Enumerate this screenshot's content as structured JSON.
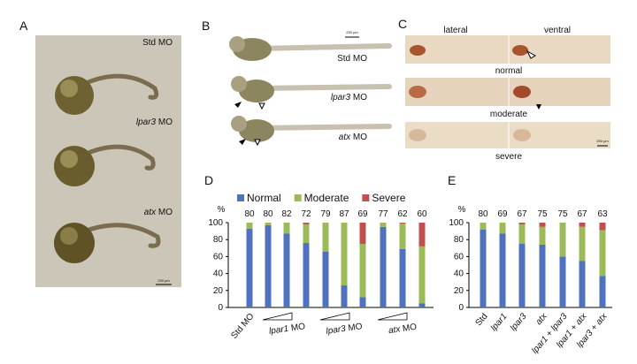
{
  "panels": {
    "A": {
      "letter": "A",
      "labels": [
        "Std MO",
        "lpar3 MO",
        "atx MO"
      ],
      "scale": "250 μm"
    },
    "B": {
      "letter": "B",
      "labels": [
        "Std MO",
        "lpar3 MO",
        "atx MO"
      ],
      "scale": "250 μm"
    },
    "C": {
      "letter": "C",
      "columns": [
        "lateral",
        "ventral"
      ],
      "rows": [
        "normal",
        "moderate",
        "severe"
      ],
      "scale": "250 μm"
    },
    "D": {
      "letter": "D"
    },
    "E": {
      "letter": "E"
    }
  },
  "chart_data": [
    {
      "type": "bar",
      "stacked": true,
      "y_label": "%",
      "legend": "top",
      "categories": [
        "Std MO",
        null,
        null,
        null,
        null,
        null,
        null,
        null,
        null,
        null
      ],
      "group_labels": [
        "lpar1 MO",
        "lpar3 MO",
        "atx MO"
      ],
      "counts": [
        80,
        80,
        82,
        72,
        79,
        87,
        69,
        77,
        62,
        60
      ],
      "series": [
        {
          "name": "Normal",
          "color": "#4f71be",
          "values": [
            93,
            97,
            87,
            76,
            66,
            26,
            12,
            95,
            69,
            5
          ]
        },
        {
          "name": "Moderate",
          "color": "#9bbb59",
          "values": [
            7,
            3,
            13,
            22,
            34,
            74,
            63,
            5,
            30,
            67
          ]
        },
        {
          "name": "Severe",
          "color": "#c0504d",
          "values": [
            0,
            0,
            0,
            2,
            0,
            0,
            25,
            0,
            1,
            28
          ]
        }
      ],
      "ylim": [
        0,
        100
      ],
      "yticks": [
        0,
        20,
        40,
        60,
        80,
        100
      ]
    },
    {
      "type": "bar",
      "stacked": true,
      "y_label": "%",
      "legend": "none",
      "categories": [
        "Std",
        "lpar1",
        "lpar3",
        "atx",
        "lpar1 + lpar3",
        "lpar1 + atx",
        "lpar3 + atx"
      ],
      "counts": [
        80,
        69,
        67,
        75,
        75,
        67,
        63
      ],
      "series": [
        {
          "name": "Normal",
          "color": "#4f71be",
          "values": [
            92,
            87,
            75,
            74,
            60,
            55,
            37
          ]
        },
        {
          "name": "Moderate",
          "color": "#9bbb59",
          "values": [
            8,
            13,
            23,
            21,
            40,
            40,
            54
          ]
        },
        {
          "name": "Severe",
          "color": "#c0504d",
          "values": [
            0,
            0,
            2,
            5,
            0,
            5,
            9
          ]
        }
      ],
      "ylim": [
        0,
        100
      ],
      "yticks": [
        0,
        20,
        40,
        60,
        80,
        100
      ]
    }
  ]
}
